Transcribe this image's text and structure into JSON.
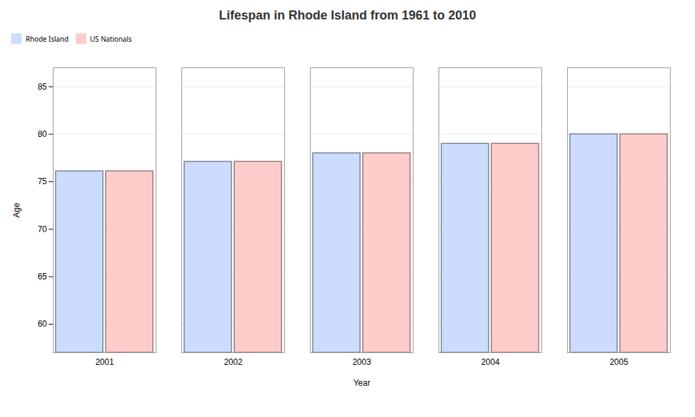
{
  "chart_data": {
    "type": "bar",
    "title": "Lifespan in Rhode Island from 1961 to 2010",
    "xlabel": "Year",
    "ylabel": "Age",
    "categories": [
      "2001",
      "2002",
      "2003",
      "2004",
      "2005"
    ],
    "series": [
      {
        "name": "Rhode Island",
        "color": "#ccdcff",
        "values": [
          76.1,
          77.1,
          78.0,
          79.0,
          80.0
        ]
      },
      {
        "name": "US Nationals",
        "color": "#ffcccc",
        "values": [
          76.1,
          77.1,
          78.0,
          79.0,
          80.0
        ]
      }
    ],
    "ylim": [
      57,
      87
    ],
    "yticks": [
      60,
      65,
      70,
      75,
      80,
      85
    ],
    "grid": true,
    "legend": "top"
  }
}
